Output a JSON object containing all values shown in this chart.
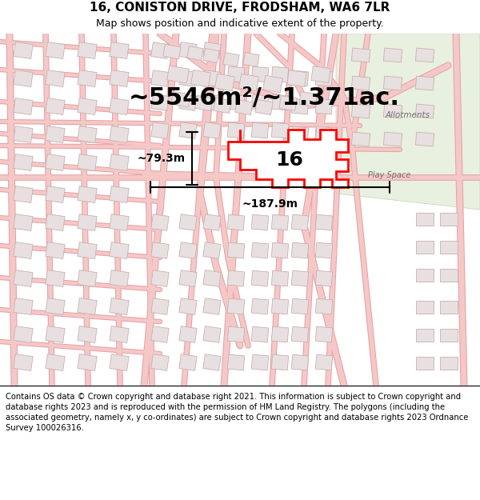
{
  "title": "16, CONISTON DRIVE, FRODSHAM, WA6 7LR",
  "subtitle": "Map shows position and indicative extent of the property.",
  "area_text": "~5546m²/~1.371ac.",
  "width_label": "~187.9m",
  "height_label": "~79.3m",
  "property_number": "16",
  "allotments_label": "Allotments",
  "play_space_label": "Play Space",
  "footer_text": "Contains OS data © Crown copyright and database right 2021. This information is subject to Crown copyright and database rights 2023 and is reproduced with the permission of HM Land Registry. The polygons (including the associated geometry, namely x, y co-ordinates) are subject to Crown copyright and database rights 2023 Ordnance Survey 100026316.",
  "bg_color": "#ffffff",
  "map_bg": "#ffffff",
  "road_color": "#f5c8c8",
  "road_outline": "#e8a0a0",
  "building_fill": "#e8e0e0",
  "building_outline": "#c8b0b0",
  "highlight_color": "#ff0000",
  "highlight_fill": "#ffffff",
  "green_area": "#e8f0e0",
  "title_fontsize": 11,
  "subtitle_fontsize": 9,
  "area_fontsize": 22,
  "label_fontsize": 11,
  "footer_fontsize": 7.2,
  "map_road_lw": 6,
  "map_road_lw_minor": 3
}
